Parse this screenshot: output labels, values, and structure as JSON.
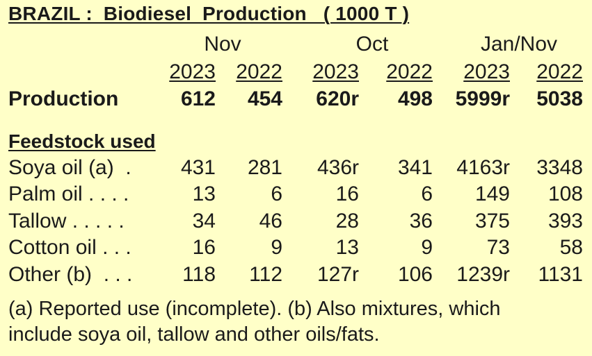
{
  "title": "BRAZIL :  Biodiesel  Production   ( 1000 T )",
  "groups": [
    "Nov",
    "Oct",
    "Jan/Nov"
  ],
  "years": [
    "2023",
    "2022",
    "2023",
    "2022",
    "2023",
    "2022"
  ],
  "production": {
    "label": "Production",
    "values": [
      "612",
      "454",
      "620r",
      "498",
      "5999r",
      "5038"
    ]
  },
  "feedstock_heading": "Feedstock used",
  "feedstock_rows": [
    {
      "label": "Soya oil (a)  .",
      "values": [
        "431",
        "281",
        "436r",
        "341",
        "4163r",
        "3348"
      ]
    },
    {
      "label": "Palm oil . . . .",
      "values": [
        "13",
        "6",
        "16",
        "6",
        "149",
        "108"
      ]
    },
    {
      "label": "Tallow . . . . .",
      "values": [
        "34",
        "46",
        "28",
        "36",
        "375",
        "393"
      ]
    },
    {
      "label": "Cotton oil . . .",
      "values": [
        "16",
        "9",
        "13",
        "9",
        "73",
        "58"
      ]
    },
    {
      "label": "Other (b)  . . .",
      "values": [
        "118",
        "112",
        "127r",
        "106",
        "1239r",
        "1131"
      ]
    }
  ],
  "footnote_lines": [
    "(a) Reported use (incomplete). (b) Also mixtures, which",
    "include soya oil, tallow and other oils/fats."
  ]
}
